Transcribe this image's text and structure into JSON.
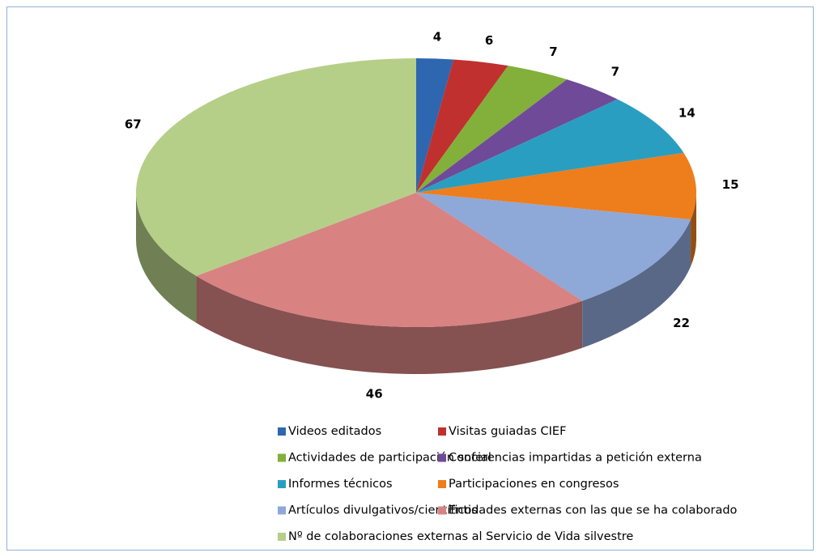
{
  "chart_data": {
    "type": "pie",
    "categories": [
      "Videos editados",
      "Visitas guiadas CIEF",
      "Actividades de participación social",
      "Conferencias impartidas a petición externa",
      "Informes técnicos",
      "Participaciones en congresos",
      "Artículos divulgativos/científicos",
      "Entidades externas con las que se ha colaborado",
      "Nº de colaboraciones externas al Servicio de Vida silvestre"
    ],
    "values": [
      4,
      6,
      7,
      7,
      14,
      15,
      22,
      46,
      67
    ],
    "colors": [
      "#2e66b0",
      "#c0302e",
      "#82b03a",
      "#6f4a98",
      "#2a9ec0",
      "#ee7d1c",
      "#8ea8d8",
      "#d88282",
      "#b5cf88"
    ]
  }
}
